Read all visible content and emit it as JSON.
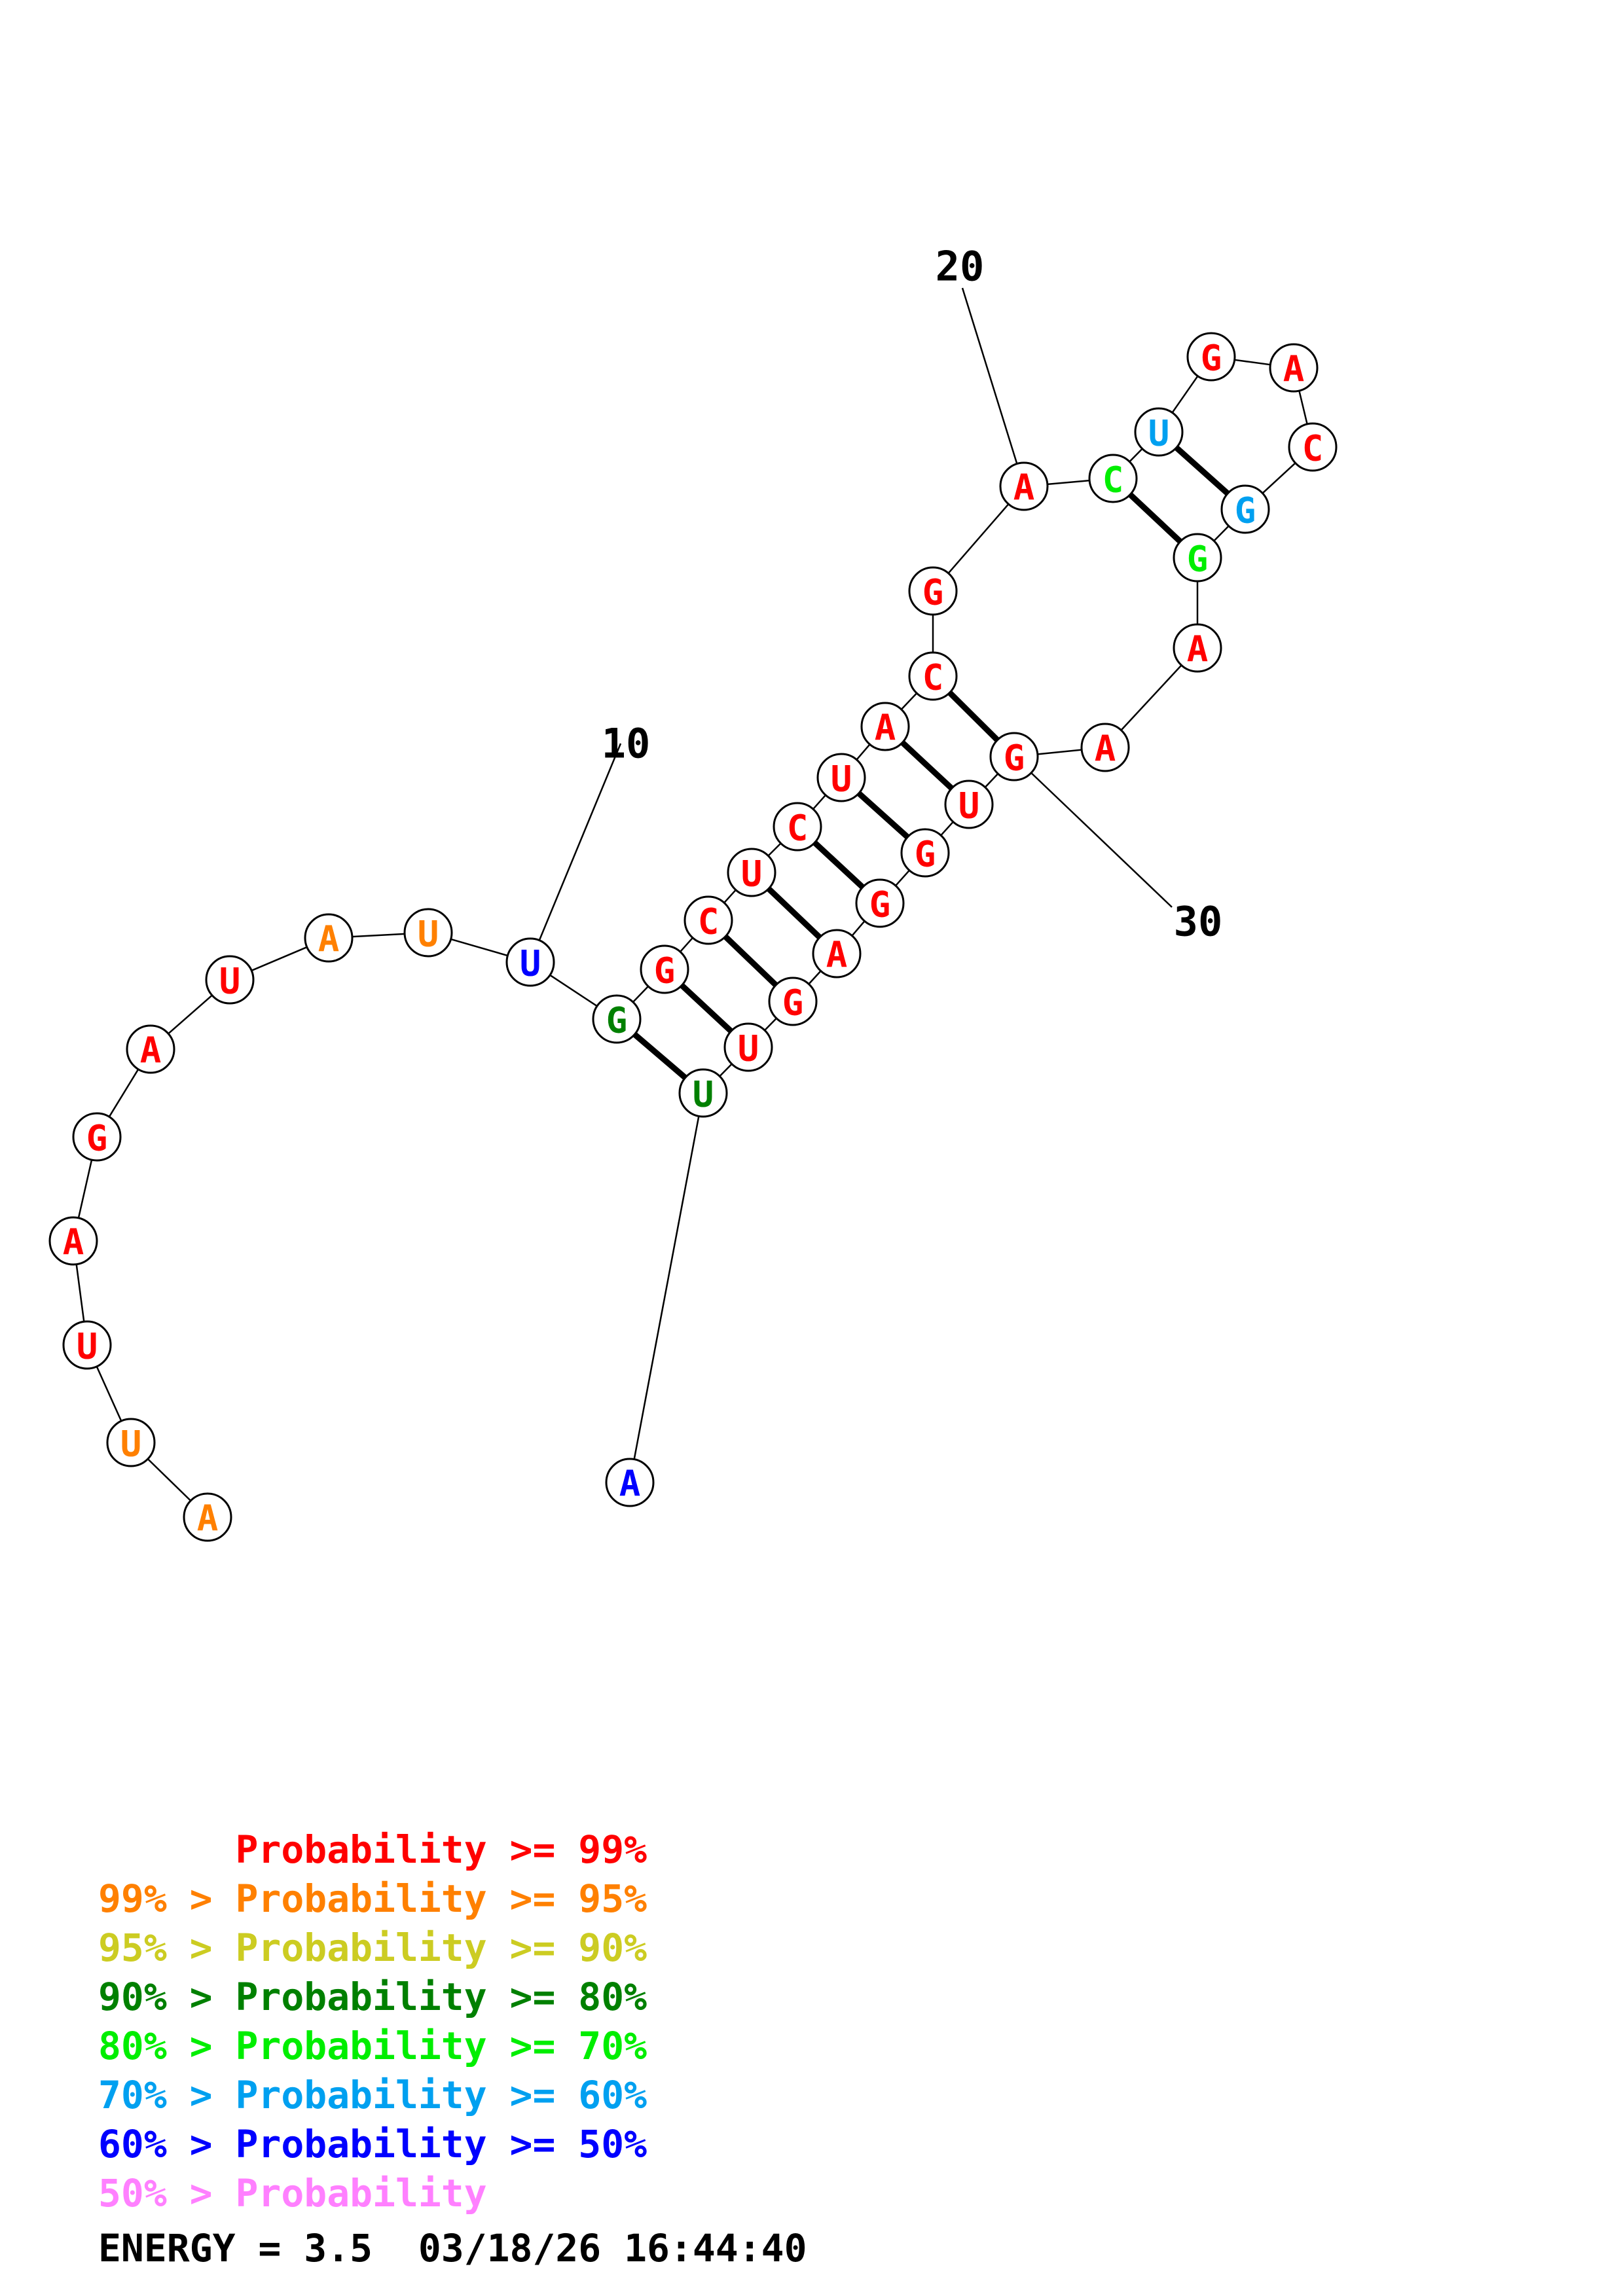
{
  "colors": {
    "p99": "#ff0000",
    "p95": "#ff8000",
    "p90": "#cccc22",
    "p80": "#008000",
    "p70": "#00ee00",
    "p60": "#00a0f0",
    "p50": "#0000ff",
    "p0": "#ff80ff",
    "ink": "#000000"
  },
  "sequence": [
    {
      "n": 1,
      "base": "A",
      "prob": "p95"
    },
    {
      "n": 2,
      "base": "U",
      "prob": "p95"
    },
    {
      "n": 3,
      "base": "U",
      "prob": "p99"
    },
    {
      "n": 4,
      "base": "A",
      "prob": "p99"
    },
    {
      "n": 5,
      "base": "G",
      "prob": "p99"
    },
    {
      "n": 6,
      "base": "A",
      "prob": "p99"
    },
    {
      "n": 7,
      "base": "U",
      "prob": "p99"
    },
    {
      "n": 8,
      "base": "A",
      "prob": "p95"
    },
    {
      "n": 9,
      "base": "U",
      "prob": "p95"
    },
    {
      "n": 10,
      "base": "U",
      "prob": "p50"
    },
    {
      "n": 11,
      "base": "G",
      "prob": "p80"
    },
    {
      "n": 12,
      "base": "G",
      "prob": "p99"
    },
    {
      "n": 13,
      "base": "C",
      "prob": "p99"
    },
    {
      "n": 14,
      "base": "U",
      "prob": "p99"
    },
    {
      "n": 15,
      "base": "C",
      "prob": "p99"
    },
    {
      "n": 16,
      "base": "U",
      "prob": "p99"
    },
    {
      "n": 17,
      "base": "A",
      "prob": "p99"
    },
    {
      "n": 18,
      "base": "C",
      "prob": "p99"
    },
    {
      "n": 19,
      "base": "G",
      "prob": "p99"
    },
    {
      "n": 20,
      "base": "A",
      "prob": "p99"
    },
    {
      "n": 21,
      "base": "C",
      "prob": "p70"
    },
    {
      "n": 22,
      "base": "U",
      "prob": "p60"
    },
    {
      "n": 23,
      "base": "G",
      "prob": "p99"
    },
    {
      "n": 24,
      "base": "A",
      "prob": "p99"
    },
    {
      "n": 25,
      "base": "C",
      "prob": "p99"
    },
    {
      "n": 26,
      "base": "G",
      "prob": "p60"
    },
    {
      "n": 27,
      "base": "G",
      "prob": "p70"
    },
    {
      "n": 28,
      "base": "A",
      "prob": "p99"
    },
    {
      "n": 29,
      "base": "A",
      "prob": "p99"
    },
    {
      "n": 30,
      "base": "G",
      "prob": "p99"
    },
    {
      "n": 31,
      "base": "U",
      "prob": "p99"
    },
    {
      "n": 32,
      "base": "G",
      "prob": "p99"
    },
    {
      "n": 33,
      "base": "G",
      "prob": "p99"
    },
    {
      "n": 34,
      "base": "A",
      "prob": "p99"
    },
    {
      "n": 35,
      "base": "G",
      "prob": "p99"
    },
    {
      "n": 36,
      "base": "U",
      "prob": "p99"
    },
    {
      "n": 37,
      "base": "U",
      "prob": "p80"
    },
    {
      "n": 38,
      "base": "A",
      "prob": "p50"
    }
  ],
  "pairs": [
    [
      11,
      37
    ],
    [
      12,
      36
    ],
    [
      13,
      35
    ],
    [
      14,
      34
    ],
    [
      15,
      33
    ],
    [
      16,
      32
    ],
    [
      17,
      31
    ],
    [
      18,
      30
    ],
    [
      21,
      27
    ],
    [
      22,
      26
    ]
  ],
  "ticks": [
    {
      "n": 10,
      "label": "10"
    },
    {
      "n": 20,
      "label": "20"
    },
    {
      "n": 30,
      "label": "30"
    }
  ],
  "legend": [
    {
      "text": "      Probability >= 99%",
      "prob": "p99"
    },
    {
      "text": "99% > Probability >= 95%",
      "prob": "p95"
    },
    {
      "text": "95% > Probability >= 90%",
      "prob": "p90"
    },
    {
      "text": "90% > Probability >= 80%",
      "prob": "p80"
    },
    {
      "text": "80% > Probability >= 70%",
      "prob": "p70"
    },
    {
      "text": "70% > Probability >= 60%",
      "prob": "p60"
    },
    {
      "text": "60% > Probability >= 50%",
      "prob": "p50"
    },
    {
      "text": "50% > Probability",
      "prob": "p0"
    }
  ],
  "energy_line": "ENERGY = 3.5  03/18/26 16:44:40"
}
